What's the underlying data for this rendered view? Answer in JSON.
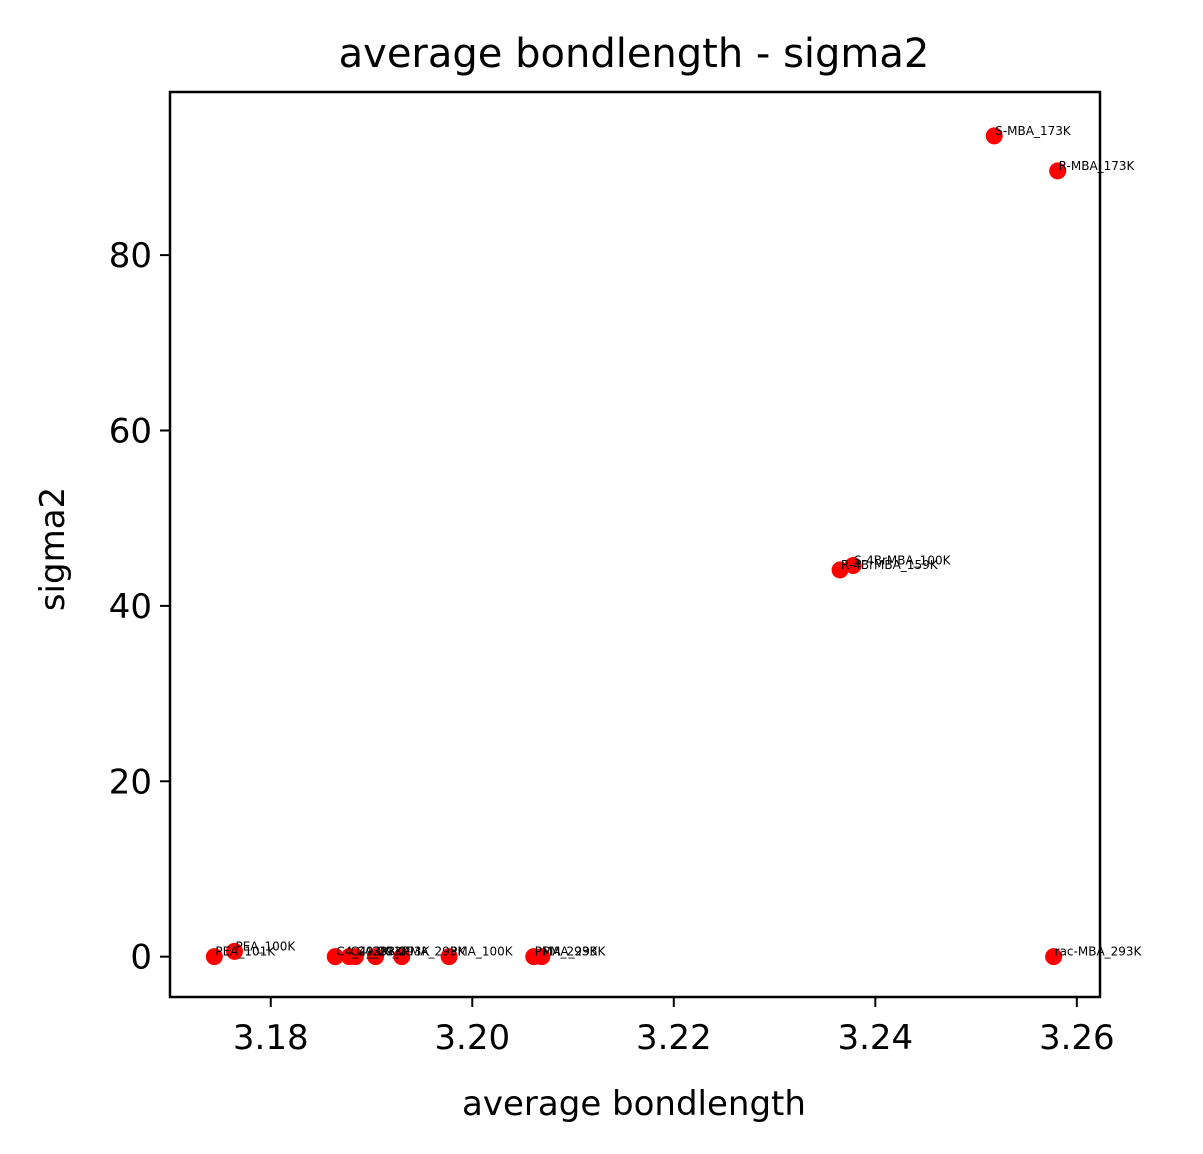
{
  "chart_data": {
    "type": "scatter",
    "title": "average bondlength - sigma2",
    "xlabel": "average bondlength",
    "ylabel": "sigma2",
    "xlim": [
      3.17,
      3.2623
    ],
    "ylim": [
      -4.6,
      98.6
    ],
    "xticks": [
      3.18,
      3.2,
      3.22,
      3.24,
      3.26
    ],
    "xtick_labels": [
      "3.18",
      "3.20",
      "3.22",
      "3.24",
      "3.26"
    ],
    "yticks": [
      0,
      20,
      40,
      60,
      80
    ],
    "ytick_labels": [
      "0",
      "20",
      "40",
      "60",
      "80"
    ],
    "grid": false,
    "marker_color": "#ff0000",
    "points": [
      {
        "label": "PEA_101K",
        "x": 3.1744,
        "y": 0.0
      },
      {
        "label": "PEA_100K",
        "x": 3.1764,
        "y": 0.6
      },
      {
        "label": "C4_293K",
        "x": 3.1864,
        "y": 0.0
      },
      {
        "label": "C4_293K",
        "x": 3.1878,
        "y": 0.0
      },
      {
        "label": "C4_293K",
        "x": 3.1884,
        "y": 0.0
      },
      {
        "label": "C4_293K",
        "x": 3.1904,
        "y": 0.0
      },
      {
        "label": "PMA_293K",
        "x": 3.193,
        "y": 0.0
      },
      {
        "label": "PMA_100K",
        "x": 3.1977,
        "y": 0.0
      },
      {
        "label": "PMA_293K",
        "x": 3.2061,
        "y": 0.0
      },
      {
        "label": "PMA_293K",
        "x": 3.2069,
        "y": 0.0
      },
      {
        "label": "R-4BrMBA_159K",
        "x": 3.2365,
        "y": 44.1
      },
      {
        "label": "S-4BrMBA_100K",
        "x": 3.2378,
        "y": 44.6
      },
      {
        "label": "S-MBA_173K",
        "x": 3.2518,
        "y": 93.6
      },
      {
        "label": "R-MBA_173K",
        "x": 3.2581,
        "y": 89.6
      },
      {
        "label": "rac-MBA_293K",
        "x": 3.2577,
        "y": 0.0
      }
    ]
  }
}
